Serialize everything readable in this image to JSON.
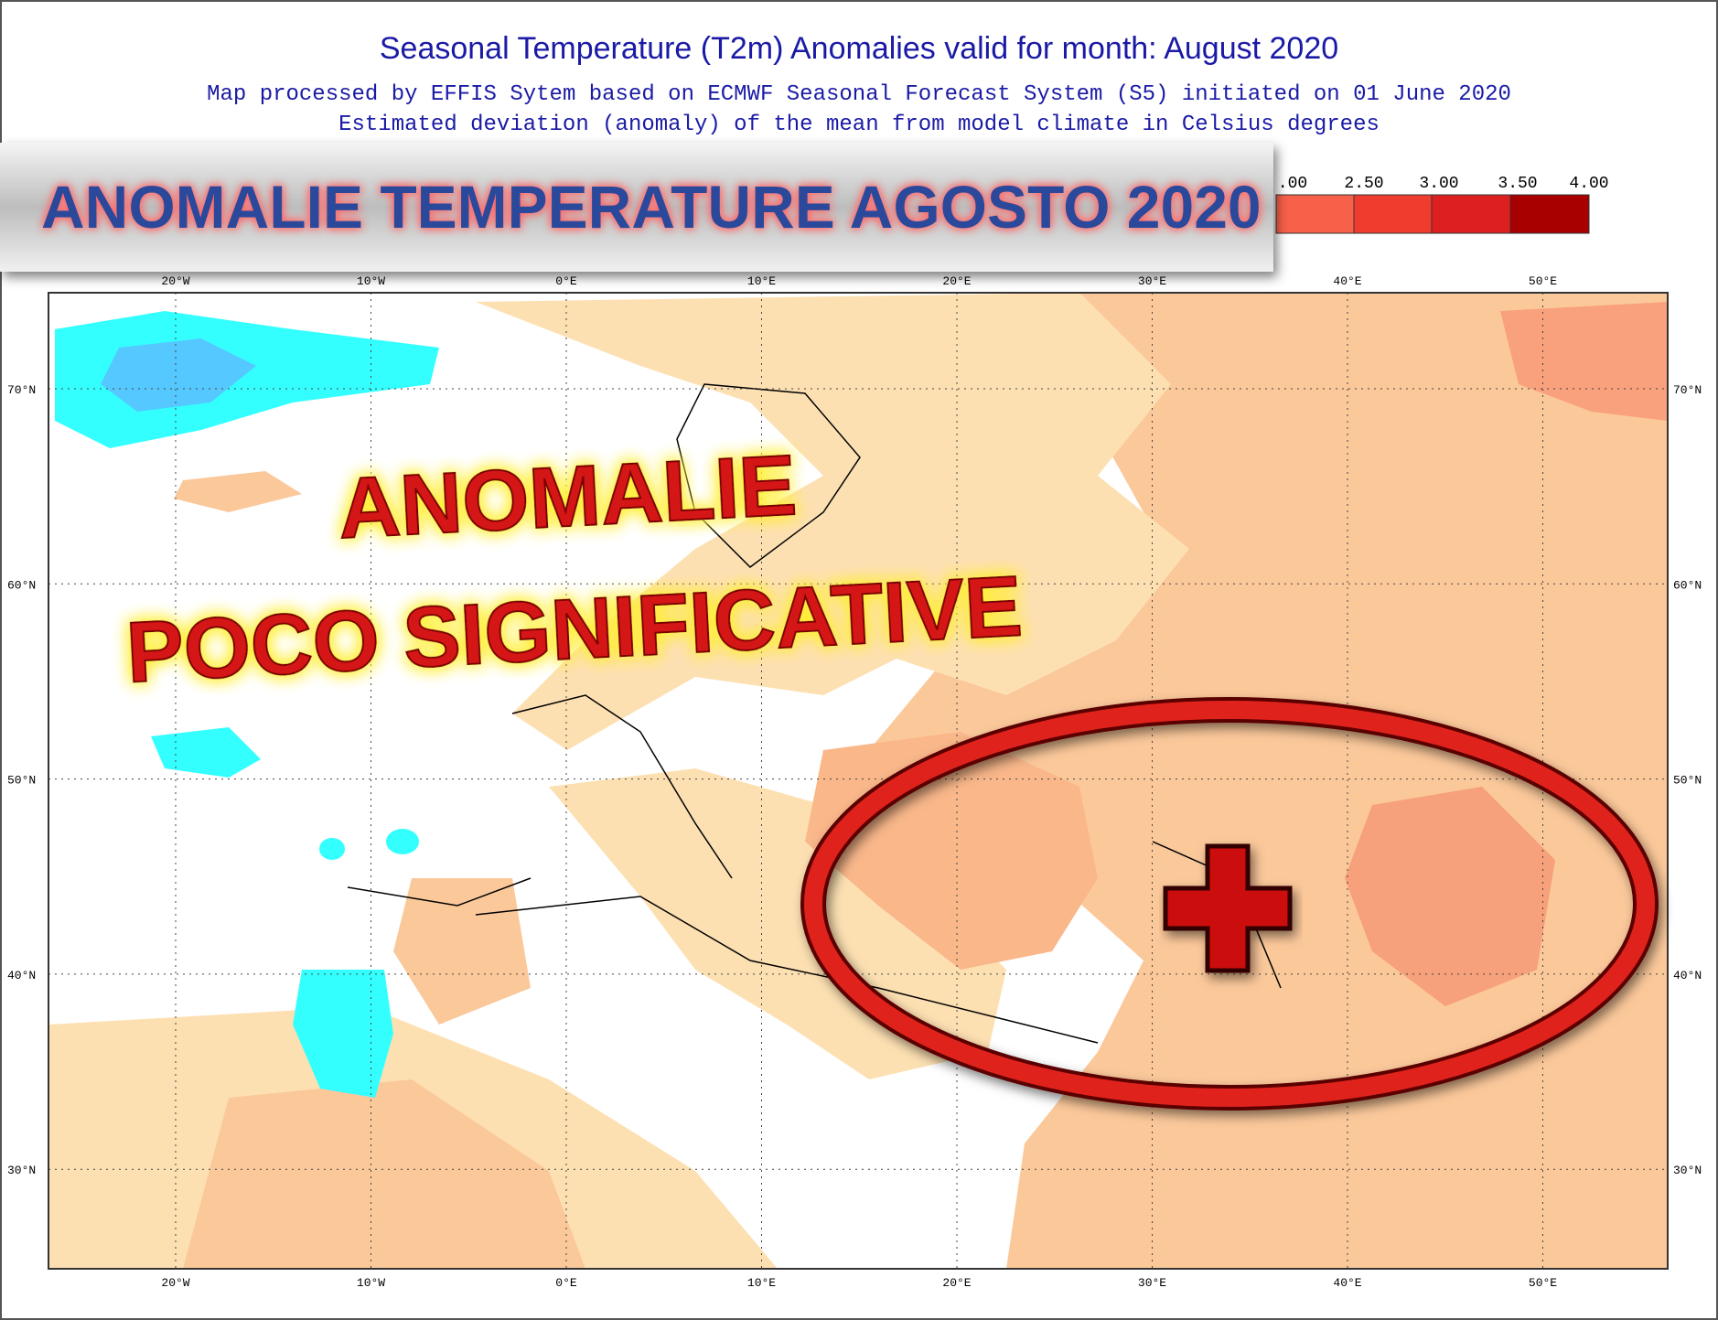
{
  "header": {
    "title": "Seasonal Temperature (T2m) Anomalies valid for month: August 2020",
    "subtitle_lines": [
      "Map processed by EFFIS Sytem based on ECMWF Seasonal Forecast System (S5) initiated on 01 June 2020",
      "Estimated deviation (anomaly) of the mean from model climate in Celsius degrees"
    ]
  },
  "banner": "ANOMALIE TEMPERATURE AGOSTO 2020",
  "legend": {
    "labels": [
      ".00",
      "2.50",
      "3.00",
      "3.50",
      "4.00"
    ]
  },
  "map": {
    "longitude_labels": [
      "20°W",
      "10°W",
      "0°E",
      "10°E",
      "20°E",
      "30°E",
      "40°E",
      "50°E"
    ],
    "latitude_labels": [
      "70°N",
      "60°N",
      "50°N",
      "40°N",
      "30°N"
    ]
  },
  "annotations": [
    "ANOMALIE",
    "POCO SIGNIFICATIVE"
  ]
}
